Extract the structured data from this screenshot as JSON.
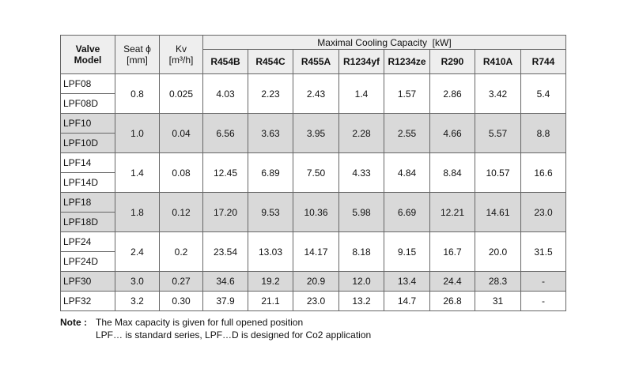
{
  "table": {
    "header": {
      "valve": [
        "Valve",
        "Model"
      ],
      "seat": [
        "Seat ϕ",
        "[mm]"
      ],
      "kv": [
        "Kv",
        "[m³/h]"
      ],
      "group": "Maximal Cooling Capacity  [kW]",
      "refrigerants": [
        "R454B",
        "R454C",
        "R455A",
        "R1234yf",
        "R1234ze",
        "R290",
        "R410A",
        "R744"
      ]
    },
    "groups": [
      {
        "models": [
          "LPF08",
          "LPF08D"
        ],
        "values": [
          "0.8",
          "0.025",
          "4.03",
          "2.23",
          "2.43",
          "1.4",
          "1.57",
          "2.86",
          "3.42",
          "5.4"
        ]
      },
      {
        "models": [
          "LPF10",
          "LPF10D"
        ],
        "values": [
          "1.0",
          "0.04",
          "6.56",
          "3.63",
          "3.95",
          "2.28",
          "2.55",
          "4.66",
          "5.57",
          "8.8"
        ]
      },
      {
        "models": [
          "LPF14",
          "LPF14D"
        ],
        "values": [
          "1.4",
          "0.08",
          "12.45",
          "6.89",
          "7.50",
          "4.33",
          "4.84",
          "8.84",
          "10.57",
          "16.6"
        ]
      },
      {
        "models": [
          "LPF18",
          "LPF18D"
        ],
        "values": [
          "1.8",
          "0.12",
          "17.20",
          "9.53",
          "10.36",
          "5.98",
          "6.69",
          "12.21",
          "14.61",
          "23.0"
        ]
      },
      {
        "models": [
          "LPF24",
          "LPF24D"
        ],
        "values": [
          "2.4",
          "0.2",
          "23.54",
          "13.03",
          "14.17",
          "8.18",
          "9.15",
          "16.7",
          "20.0",
          "31.5"
        ]
      },
      {
        "models": [
          "LPF30"
        ],
        "values": [
          "3.0",
          "0.27",
          "34.6",
          "19.2",
          "20.9",
          "12.0",
          "13.4",
          "24.4",
          "28.3",
          "-"
        ]
      },
      {
        "models": [
          "LPF32"
        ],
        "values": [
          "3.2",
          "0.30",
          "37.9",
          "21.1",
          "23.0",
          "13.2",
          "14.7",
          "26.8",
          "31",
          "-"
        ]
      }
    ]
  },
  "note": {
    "label": "Note :",
    "lines": [
      "The Max capacity is given for full opened position",
      "LPF… is standard series, LPF…D is designed for Co2 application"
    ]
  }
}
